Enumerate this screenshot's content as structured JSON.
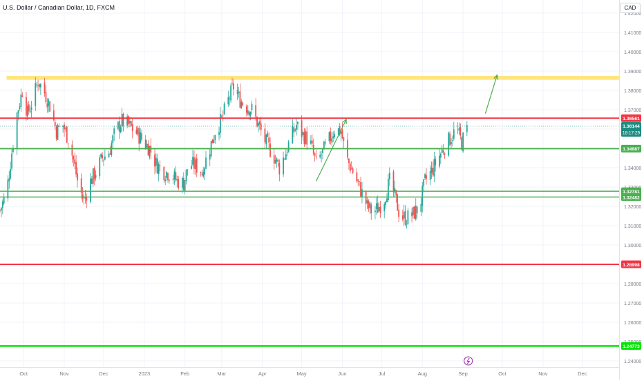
{
  "header": {
    "title": "U.S. Dollar / Canadian Dollar, 1D, FXCM",
    "currency": "CAD"
  },
  "colors": {
    "up": "#26a69a",
    "down": "#ef5350",
    "resistance": "#f23645",
    "support": "#4caf50",
    "support_bright": "#00e600",
    "target_zone": "#ffe066",
    "arrow": "#4caf50",
    "grid": "#f0f3fa",
    "axis_text": "#787b86",
    "last_price": "#1e8c82"
  },
  "chart_data": {
    "type": "candlestick",
    "title": "U.S. Dollar / Canadian Dollar, 1D, FXCM",
    "symbol": "USDCAD",
    "interval": "1D",
    "source": "FXCM",
    "quote_currency": "CAD",
    "x_ticks": [
      {
        "date": "2022-10-01",
        "label": "Oct"
      },
      {
        "date": "2022-11-01",
        "label": "Nov"
      },
      {
        "date": "2022-12-01",
        "label": "Dec"
      },
      {
        "date": "2023-01-01",
        "label": "2023"
      },
      {
        "date": "2023-02-01",
        "label": "Feb"
      },
      {
        "date": "2023-03-01",
        "label": "Mar"
      },
      {
        "date": "2023-04-01",
        "label": "Apr"
      },
      {
        "date": "2023-05-01",
        "label": "May"
      },
      {
        "date": "2023-06-01",
        "label": "Jun"
      },
      {
        "date": "2023-07-01",
        "label": "Jul"
      },
      {
        "date": "2023-08-01",
        "label": "Aug"
      },
      {
        "date": "2023-09-01",
        "label": "Sep"
      },
      {
        "date": "2023-10-01",
        "label": "Oct"
      },
      {
        "date": "2023-11-01",
        "label": "Nov"
      },
      {
        "date": "2023-12-01",
        "label": "Dec"
      }
    ],
    "y_ticks": [
      "1.42000",
      "1.41000",
      "1.40000",
      "1.39000",
      "1.38000",
      "1.37000",
      "1.36000",
      "1.35000",
      "1.34000",
      "1.33000",
      "1.32000",
      "1.31000",
      "1.30000",
      "1.29000",
      "1.28000",
      "1.27000",
      "1.26000",
      "1.25000",
      "1.24000"
    ],
    "ylim": [
      1.2365,
      1.4297
    ],
    "xlim": [
      "2022-09-13",
      "2023-12-29"
    ],
    "grid": true,
    "close_path": [
      {
        "date": "2022-09-13",
        "value": 1.318
      },
      {
        "date": "2022-09-18",
        "value": 1.327
      },
      {
        "date": "2022-09-22",
        "value": 1.348
      },
      {
        "date": "2022-09-26",
        "value": 1.368
      },
      {
        "date": "2022-09-30",
        "value": 1.38
      },
      {
        "date": "2022-10-04",
        "value": 1.368
      },
      {
        "date": "2022-10-08",
        "value": 1.375
      },
      {
        "date": "2022-10-12",
        "value": 1.385
      },
      {
        "date": "2022-10-17",
        "value": 1.379
      },
      {
        "date": "2022-10-21",
        "value": 1.372
      },
      {
        "date": "2022-10-26",
        "value": 1.359
      },
      {
        "date": "2022-10-31",
        "value": 1.362
      },
      {
        "date": "2022-11-04",
        "value": 1.355
      },
      {
        "date": "2022-11-08",
        "value": 1.344
      },
      {
        "date": "2022-11-12",
        "value": 1.33
      },
      {
        "date": "2022-11-16",
        "value": 1.323
      },
      {
        "date": "2022-11-21",
        "value": 1.333
      },
      {
        "date": "2022-11-25",
        "value": 1.338
      },
      {
        "date": "2022-11-30",
        "value": 1.345
      },
      {
        "date": "2022-12-05",
        "value": 1.348
      },
      {
        "date": "2022-12-10",
        "value": 1.359
      },
      {
        "date": "2022-12-15",
        "value": 1.364
      },
      {
        "date": "2022-12-20",
        "value": 1.362
      },
      {
        "date": "2022-12-26",
        "value": 1.358
      },
      {
        "date": "2022-12-31",
        "value": 1.354
      },
      {
        "date": "2023-01-05",
        "value": 1.35
      },
      {
        "date": "2023-01-10",
        "value": 1.342
      },
      {
        "date": "2023-01-16",
        "value": 1.338
      },
      {
        "date": "2023-01-21",
        "value": 1.337
      },
      {
        "date": "2023-01-26",
        "value": 1.333
      },
      {
        "date": "2023-01-31",
        "value": 1.332
      },
      {
        "date": "2023-02-04",
        "value": 1.342
      },
      {
        "date": "2023-02-09",
        "value": 1.341
      },
      {
        "date": "2023-02-14",
        "value": 1.338
      },
      {
        "date": "2023-02-19",
        "value": 1.348
      },
      {
        "date": "2023-02-24",
        "value": 1.359
      },
      {
        "date": "2023-03-01",
        "value": 1.365
      },
      {
        "date": "2023-03-06",
        "value": 1.375
      },
      {
        "date": "2023-03-10",
        "value": 1.382
      },
      {
        "date": "2023-03-14",
        "value": 1.376
      },
      {
        "date": "2023-03-19",
        "value": 1.372
      },
      {
        "date": "2023-03-24",
        "value": 1.37
      },
      {
        "date": "2023-03-29",
        "value": 1.362
      },
      {
        "date": "2023-04-03",
        "value": 1.354
      },
      {
        "date": "2023-04-09",
        "value": 1.347
      },
      {
        "date": "2023-04-14",
        "value": 1.34
      },
      {
        "date": "2023-04-19",
        "value": 1.348
      },
      {
        "date": "2023-04-23",
        "value": 1.356
      },
      {
        "date": "2023-04-27",
        "value": 1.362
      },
      {
        "date": "2023-05-02",
        "value": 1.357
      },
      {
        "date": "2023-05-07",
        "value": 1.354
      },
      {
        "date": "2023-05-12",
        "value": 1.342
      },
      {
        "date": "2023-05-17",
        "value": 1.348
      },
      {
        "date": "2023-05-21",
        "value": 1.353
      },
      {
        "date": "2023-05-26",
        "value": 1.36
      },
      {
        "date": "2023-05-31",
        "value": 1.359
      },
      {
        "date": "2023-06-04",
        "value": 1.345
      },
      {
        "date": "2023-06-09",
        "value": 1.338
      },
      {
        "date": "2023-06-14",
        "value": 1.33
      },
      {
        "date": "2023-06-20",
        "value": 1.32
      },
      {
        "date": "2023-06-24",
        "value": 1.317
      },
      {
        "date": "2023-06-28",
        "value": 1.319
      },
      {
        "date": "2023-07-03",
        "value": 1.324
      },
      {
        "date": "2023-07-07",
        "value": 1.333
      },
      {
        "date": "2023-07-11",
        "value": 1.325
      },
      {
        "date": "2023-07-15",
        "value": 1.315
      },
      {
        "date": "2023-07-20",
        "value": 1.314
      },
      {
        "date": "2023-07-25",
        "value": 1.316
      },
      {
        "date": "2023-07-30",
        "value": 1.32
      },
      {
        "date": "2023-08-03",
        "value": 1.333
      },
      {
        "date": "2023-08-08",
        "value": 1.338
      },
      {
        "date": "2023-08-13",
        "value": 1.345
      },
      {
        "date": "2023-08-18",
        "value": 1.351
      },
      {
        "date": "2023-08-23",
        "value": 1.356
      },
      {
        "date": "2023-08-27",
        "value": 1.36
      },
      {
        "date": "2023-08-31",
        "value": 1.353
      },
      {
        "date": "2023-09-05",
        "value": 1.3614
      }
    ],
    "horizontal_levels": [
      {
        "value": 1.36561,
        "label": "1.36561",
        "color": "resistance",
        "width": 2
      },
      {
        "value": 1.34987,
        "label": "1.34987",
        "color": "support",
        "width": 2
      },
      {
        "value": 1.32781,
        "label": "1.32781",
        "color": "support",
        "width": 1.5
      },
      {
        "value": 1.32482,
        "label": "1.32482",
        "color": "support",
        "width": 1.5
      },
      {
        "value": 1.28998,
        "label": "1.28998",
        "color": "resistance",
        "width": 2
      },
      {
        "value": 1.24773,
        "label": "1.24773",
        "color": "support_bright",
        "width": 2.5
      }
    ],
    "target_zone": {
      "from": 1.3855,
      "to": 1.3875,
      "x_start": "2022-09-18",
      "x_end": "2023-12-29"
    },
    "trend_arrows": [
      {
        "from_date": "2023-05-12",
        "from_value": 1.333,
        "to_date": "2023-06-04",
        "to_value": 1.365
      },
      {
        "from_date": "2023-09-18",
        "from_value": 1.368,
        "to_date": "2023-09-27",
        "to_value": 1.388
      }
    ],
    "last_price": {
      "value": "1.36144",
      "countdown": "18:17:29"
    }
  }
}
